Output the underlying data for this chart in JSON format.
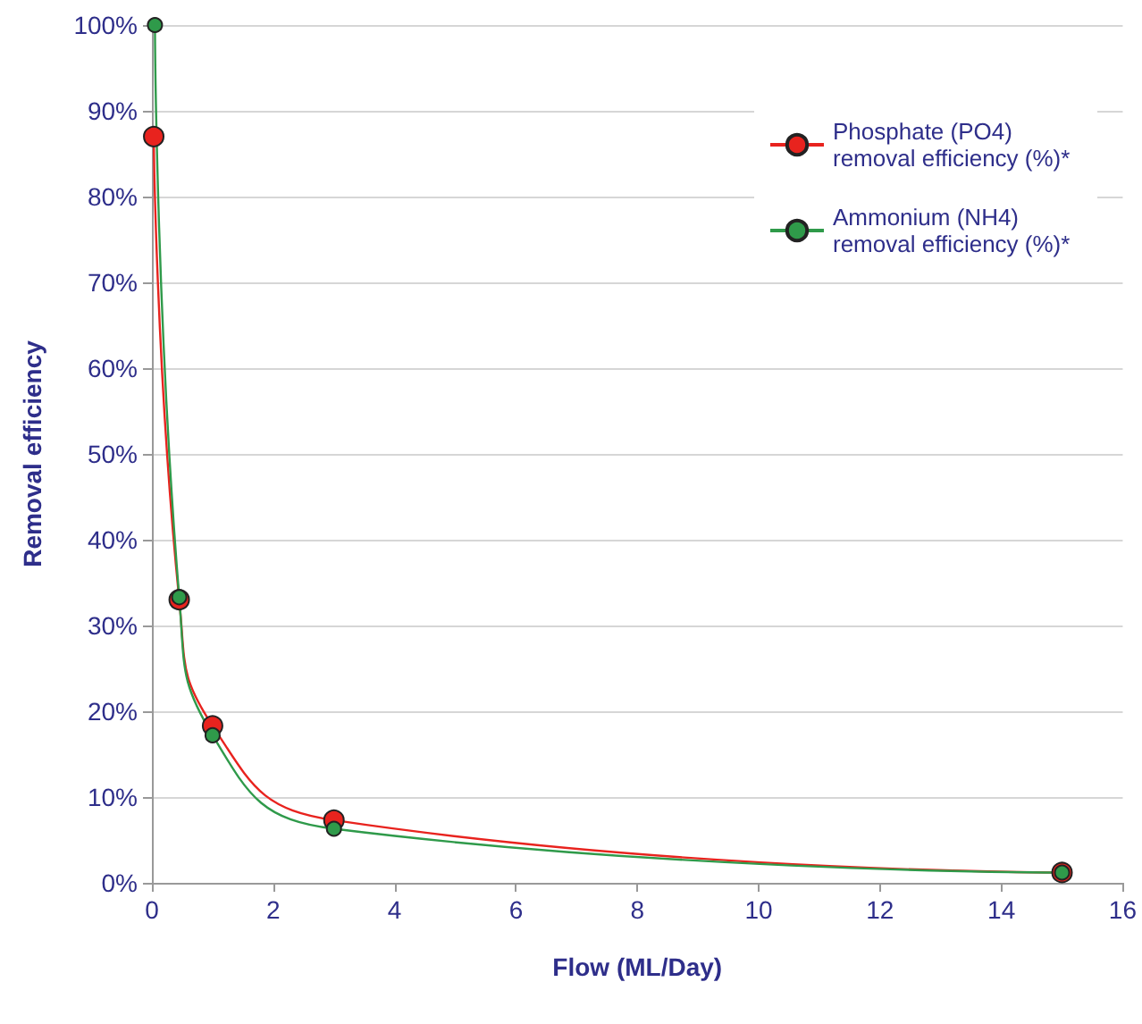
{
  "chart_data": {
    "type": "line",
    "xlabel": "Flow (ML/Day)",
    "ylabel": "Removal efficiency",
    "series": [
      {
        "name": "Phosphate (PO4) removal efficiency (%)*",
        "color": "#e8231e",
        "x": [
          0.03,
          0.45,
          1,
          3,
          15
        ],
        "values": [
          87,
          33,
          18.3,
          7.3,
          1.2
        ]
      },
      {
        "name": "Ammonium (NH4) removal efficiency (%)*",
        "color": "#2f9a4a",
        "x": [
          0.05,
          0.45,
          1,
          3,
          15
        ],
        "values": [
          100,
          33.3,
          17.2,
          6.3,
          1.2
        ]
      }
    ],
    "xlim": [
      0,
      16
    ],
    "xticks": [
      0,
      2,
      4,
      6,
      8,
      10,
      12,
      14,
      16
    ],
    "ylim": [
      0,
      100
    ],
    "yticks": [
      {
        "value": 0,
        "label": "0%"
      },
      {
        "value": 10,
        "label": "10%"
      },
      {
        "value": 20,
        "label": "20%"
      },
      {
        "value": 30,
        "label": "30%"
      },
      {
        "value": 40,
        "label": "40%"
      },
      {
        "value": 50,
        "label": "50%"
      },
      {
        "value": 60,
        "label": "60%"
      },
      {
        "value": 70,
        "label": "70%"
      },
      {
        "value": 80,
        "label": "80%"
      },
      {
        "value": 90,
        "label": "90%"
      },
      {
        "value": 100,
        "label": "100%"
      }
    ],
    "grid": "y",
    "legend": "top right",
    "marker": "circle",
    "line_style": "solid"
  }
}
